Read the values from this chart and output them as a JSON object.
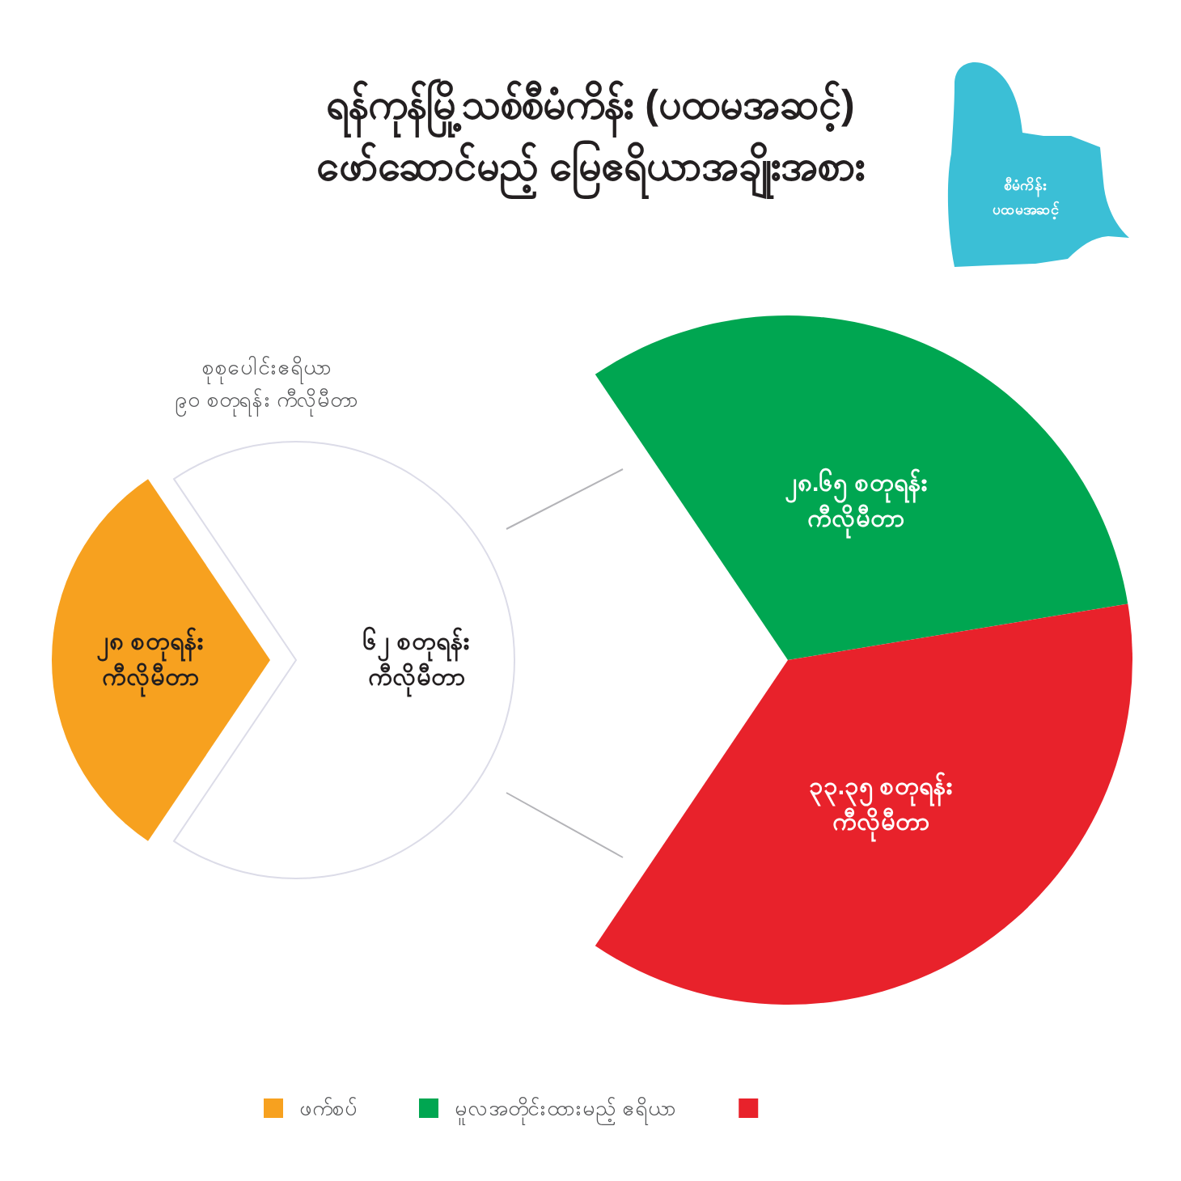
{
  "chart_data": [
    {
      "type": "pie",
      "title": "ရန်ကုန်မြို့သစ်စီမံကိန်း (ပထမအဆင့်) ဖော်ဆောင်မည့် မြေဧရိယာအချိုးအစား",
      "categories": [
        "ဖက်စပ်",
        null
      ],
      "values": [
        28,
        62
      ],
      "colors": [
        "#f7a11f",
        "#ffffff"
      ],
      "value_labels": [
        "၂၈ စတုရန်း ကီလိုမီတာ",
        "၆၂ စတုရန်း ကီလိုမီတာ"
      ],
      "annotations": [
        "စုစုပေါင်းဧရိယာ ၉၀ စတုရန်း ကီလိုမီတာ"
      ],
      "legend": "bottom"
    },
    {
      "type": "pie",
      "categories": [
        "မူလအတိုင်းထားမည့် ဧရိယာ",
        null
      ],
      "values": [
        28.65,
        33.35
      ],
      "colors": [
        "#00a651",
        "#e8222b"
      ],
      "value_labels": [
        "၂၈.၆၅ စတုရန်း ကီလိုမီတာ",
        "၃၃.၃၅ စတုရန်း ကီလိုမီတာ"
      ],
      "annotations": [
        "စီမံကိန်း ပထမအဆင့်"
      ],
      "legend": "bottom"
    }
  ]
}
